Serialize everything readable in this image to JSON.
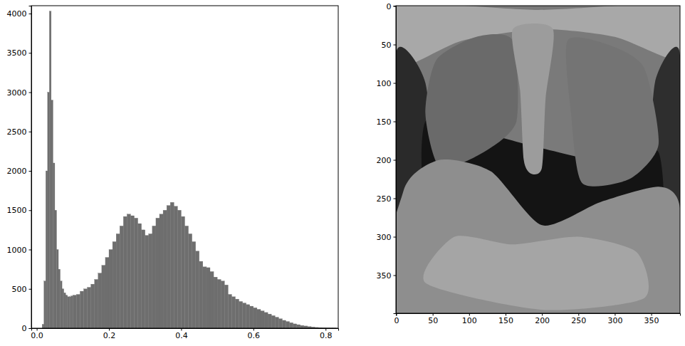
{
  "chart_data": [
    {
      "type": "histogram",
      "bins": [
        0.01,
        0.015,
        0.02,
        0.025,
        0.03,
        0.035,
        0.04,
        0.045,
        0.05,
        0.055,
        0.06,
        0.065,
        0.07,
        0.075,
        0.08,
        0.085,
        0.09,
        0.095,
        0.1,
        0.11,
        0.12,
        0.13,
        0.14,
        0.15,
        0.16,
        0.17,
        0.18,
        0.19,
        0.2,
        0.21,
        0.22,
        0.23,
        0.24,
        0.25,
        0.26,
        0.27,
        0.28,
        0.29,
        0.3,
        0.31,
        0.32,
        0.33,
        0.34,
        0.35,
        0.36,
        0.37,
        0.38,
        0.39,
        0.4,
        0.41,
        0.42,
        0.43,
        0.44,
        0.45,
        0.46,
        0.47,
        0.48,
        0.49,
        0.5,
        0.51,
        0.52,
        0.53,
        0.54,
        0.55,
        0.56,
        0.57,
        0.58,
        0.59,
        0.6,
        0.61,
        0.62,
        0.63,
        0.64,
        0.65,
        0.66,
        0.67,
        0.68,
        0.69,
        0.7,
        0.71,
        0.72,
        0.73,
        0.74,
        0.75,
        0.76,
        0.77,
        0.78,
        0.79,
        0.8,
        0.81,
        0.82,
        0.83
      ],
      "values": [
        0,
        50,
        600,
        2000,
        3000,
        4030,
        2900,
        2100,
        1500,
        1000,
        750,
        600,
        500,
        450,
        420,
        400,
        400,
        410,
        420,
        430,
        470,
        500,
        520,
        560,
        620,
        700,
        800,
        900,
        1000,
        1100,
        1200,
        1300,
        1420,
        1450,
        1430,
        1400,
        1330,
        1250,
        1180,
        1200,
        1300,
        1400,
        1450,
        1500,
        1560,
        1600,
        1550,
        1500,
        1420,
        1300,
        1200,
        1100,
        980,
        850,
        780,
        770,
        720,
        650,
        620,
        600,
        550,
        430,
        400,
        370,
        340,
        320,
        300,
        280,
        260,
        240,
        220,
        200,
        180,
        160,
        140,
        120,
        100,
        85,
        70,
        55,
        45,
        35,
        28,
        20,
        15,
        10,
        8,
        6,
        4,
        3,
        2
      ],
      "color": "#6e6e6e",
      "xlim": [
        -0.015,
        0.835
      ],
      "ylim": [
        0,
        4100
      ],
      "xticks": [
        {
          "value": 0,
          "label": "0.0"
        },
        0.2,
        0.4,
        0.6,
        0.8
      ],
      "yticks": [
        0,
        500,
        1000,
        1500,
        2000,
        2500,
        3000,
        3500,
        4000
      ]
    },
    {
      "type": "image",
      "xlim": [
        -0.5,
        389.5
      ],
      "ylim": [
        399.5,
        -0.5
      ],
      "xticks": [
        0,
        50,
        100,
        150,
        200,
        250,
        300,
        350
      ],
      "yticks": [
        0,
        50,
        100,
        150,
        200,
        250,
        300,
        350
      ]
    }
  ]
}
